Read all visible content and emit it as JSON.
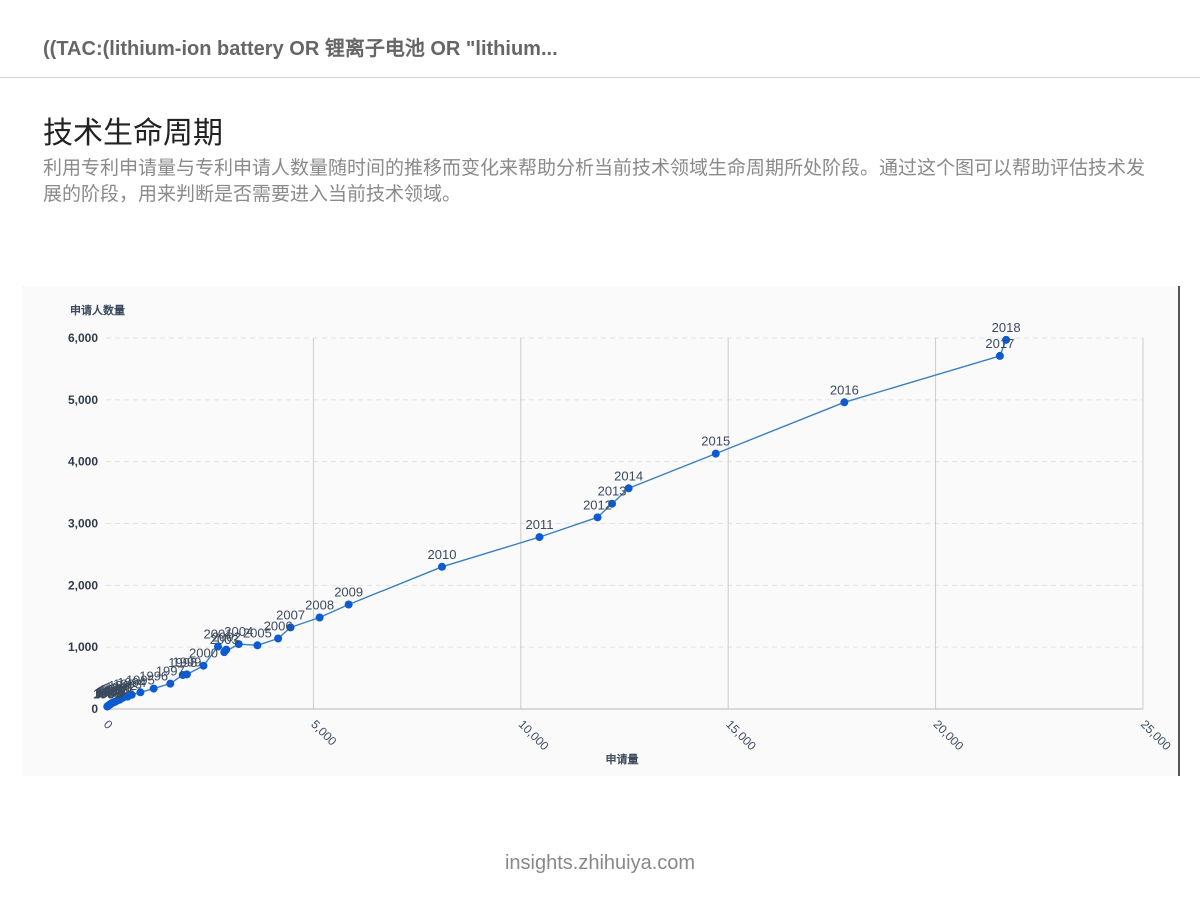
{
  "header": {
    "query": "((TAC:(lithium-ion battery OR 锂离子电池 OR \"lithium..."
  },
  "page": {
    "title": "技术生命周期",
    "description": "利用专利申请量与专利申请人数量随时间的推移而变化来帮助分析当前技术领域生命周期所处阶段。通过这个图可以帮助评估技术发展的阶段，用来判断是否需要进入当前技术领域。"
  },
  "footer": {
    "text": "insights.zhihuiya.com"
  },
  "colors": {
    "line": "#3a7fc0",
    "point": "#0d5bd1",
    "grid_v": "#cccccc",
    "grid_h": "#e3e3e3"
  },
  "chart_data": {
    "type": "line",
    "xlabel": "申请量",
    "ylabel": "申请人数量",
    "xlim": [
      0,
      25000
    ],
    "ylim": [
      0,
      6000
    ],
    "xticks": [
      "0",
      "5,000",
      "10,000",
      "15,000",
      "20,000",
      "25,000"
    ],
    "yticks": [
      "0",
      "1,000",
      "2,000",
      "3,000",
      "4,000",
      "5,000",
      "6,000"
    ],
    "grid_vertical": true,
    "grid_horizontal_dashed": true,
    "points": [
      {
        "label": "1980",
        "x": 30,
        "y": 40
      },
      {
        "label": "1981",
        "x": 40,
        "y": 45
      },
      {
        "label": "1982",
        "x": 55,
        "y": 55
      },
      {
        "label": "1983",
        "x": 70,
        "y": 60
      },
      {
        "label": "1984",
        "x": 90,
        "y": 70
      },
      {
        "label": "1985",
        "x": 110,
        "y": 80
      },
      {
        "label": "1986",
        "x": 130,
        "y": 90
      },
      {
        "label": "1987",
        "x": 160,
        "y": 100
      },
      {
        "label": "1988",
        "x": 190,
        "y": 110
      },
      {
        "label": "1989",
        "x": 230,
        "y": 120
      },
      {
        "label": "1990",
        "x": 280,
        "y": 140
      },
      {
        "label": "1991",
        "x": 330,
        "y": 150
      },
      {
        "label": "1992",
        "x": 400,
        "y": 180
      },
      {
        "label": "1993",
        "x": 520,
        "y": 200
      },
      {
        "label": "1994",
        "x": 620,
        "y": 230
      },
      {
        "label": "1995",
        "x": 830,
        "y": 270
      },
      {
        "label": "1996",
        "x": 1150,
        "y": 330
      },
      {
        "label": "1997",
        "x": 1550,
        "y": 410
      },
      {
        "label": "1998",
        "x": 1850,
        "y": 550
      },
      {
        "label": "1999",
        "x": 1950,
        "y": 560
      },
      {
        "label": "2000",
        "x": 2350,
        "y": 700
      },
      {
        "label": "2001",
        "x": 2700,
        "y": 1010
      },
      {
        "label": "2002",
        "x": 2900,
        "y": 960
      },
      {
        "label": "2003",
        "x": 2850,
        "y": 920
      },
      {
        "label": "2004",
        "x": 3200,
        "y": 1050
      },
      {
        "label": "2005",
        "x": 3650,
        "y": 1030
      },
      {
        "label": "2006",
        "x": 4150,
        "y": 1140
      },
      {
        "label": "2007",
        "x": 4450,
        "y": 1320
      },
      {
        "label": "2008",
        "x": 5150,
        "y": 1480
      },
      {
        "label": "2009",
        "x": 5850,
        "y": 1690
      },
      {
        "label": "2010",
        "x": 8100,
        "y": 2300
      },
      {
        "label": "2011",
        "x": 10450,
        "y": 2780
      },
      {
        "label": "2012",
        "x": 11850,
        "y": 3100
      },
      {
        "label": "2013",
        "x": 12200,
        "y": 3320
      },
      {
        "label": "2014",
        "x": 12600,
        "y": 3570
      },
      {
        "label": "2015",
        "x": 14700,
        "y": 4130
      },
      {
        "label": "2016",
        "x": 17800,
        "y": 4960
      },
      {
        "label": "2017",
        "x": 21550,
        "y": 5710
      },
      {
        "label": "2018",
        "x": 21700,
        "y": 5970
      }
    ]
  }
}
